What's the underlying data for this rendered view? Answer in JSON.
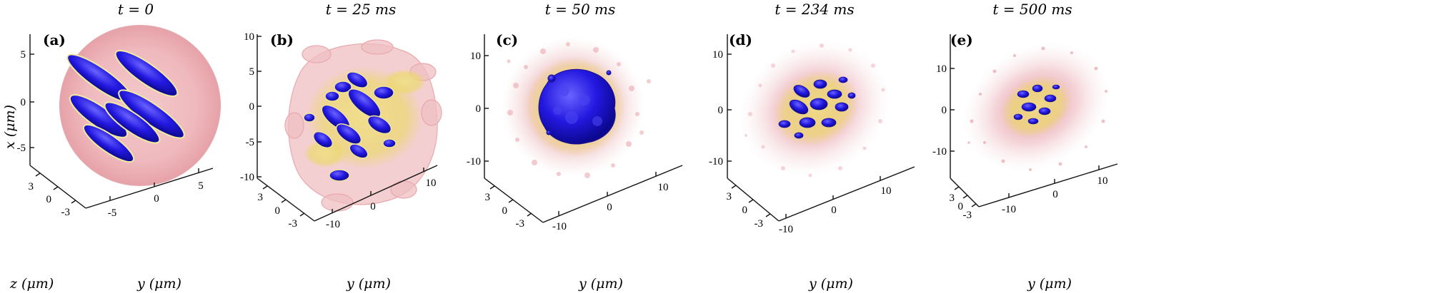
{
  "figure": {
    "panels": [
      {
        "letter": "(a)",
        "time_label": "t = 0",
        "x_axis_label": "x (μm)",
        "y_axis_label": "y (μm)",
        "z_axis_label": "z (μm)",
        "x_ticks": [
          "5",
          "0",
          "-5"
        ],
        "y_ticks": [
          "-5",
          "0",
          "5"
        ],
        "z_ticks": [
          "3",
          "0",
          "-3"
        ]
      },
      {
        "letter": "(b)",
        "time_label": "t = 25 ms",
        "y_axis_label": "y (μm)",
        "x_ticks": [
          "10",
          "5",
          "0",
          "-5",
          "-10"
        ],
        "y_ticks": [
          "-10",
          "0",
          "10"
        ],
        "z_ticks": [
          "3",
          "0",
          "-3"
        ]
      },
      {
        "letter": "(c)",
        "time_label": "t = 50 ms",
        "y_axis_label": "y (μm)",
        "x_ticks": [
          "10",
          "0",
          "-10"
        ],
        "y_ticks": [
          "-10",
          "0",
          "10"
        ],
        "z_ticks": [
          "3",
          "0",
          "-3"
        ]
      },
      {
        "letter": "(d)",
        "time_label": "t = 234 ms",
        "y_axis_label": "y (μm)",
        "x_ticks": [
          "10",
          "0",
          "-10"
        ],
        "y_ticks": [
          "-10",
          "0",
          "10"
        ],
        "z_ticks": [
          "3",
          "0",
          "-3"
        ]
      },
      {
        "letter": "(e)",
        "time_label": "t = 500 ms",
        "y_axis_label": "y (μm)",
        "x_ticks": [
          "10",
          "0",
          "-10"
        ],
        "y_ticks": [
          "-10",
          "0",
          "10"
        ],
        "z_ticks": [
          "3",
          "0",
          "-3"
        ]
      }
    ],
    "colors": {
      "outer_isosurface": "#e8a3a8",
      "middle_isosurface": "#e8d36a",
      "inner_isosurface": "#1a10d8",
      "axis": "#111111"
    }
  }
}
